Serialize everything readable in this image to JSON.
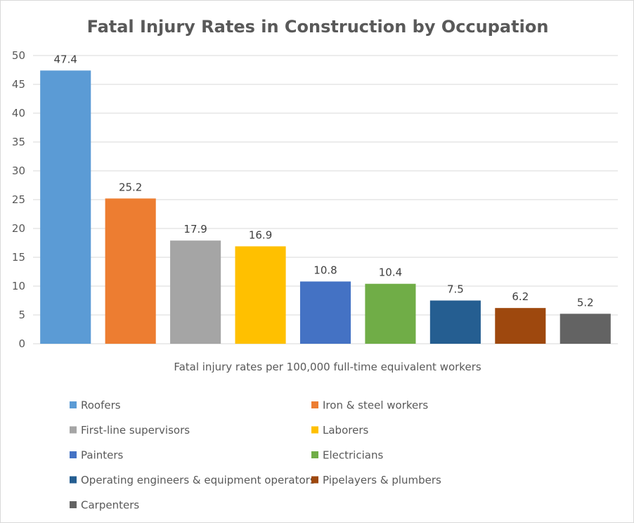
{
  "chart_data": {
    "type": "bar",
    "title": "Fatal Injury Rates in Construction by Occupation",
    "xlabel": "Fatal injury rates per 100,000 full-time equivalent workers",
    "ylabel": "",
    "ylim": [
      0,
      50
    ],
    "yticks": [
      0,
      5,
      10,
      15,
      20,
      25,
      30,
      35,
      40,
      45,
      50
    ],
    "grid": true,
    "legend_position": "bottom",
    "series": [
      {
        "name": "Roofers",
        "value": 47.4,
        "color": "#5b9bd5"
      },
      {
        "name": "Iron & steel workers",
        "value": 25.2,
        "color": "#ed7d31"
      },
      {
        "name": "First-line supervisors",
        "value": 17.9,
        "color": "#a5a5a5"
      },
      {
        "name": "Laborers",
        "value": 16.9,
        "color": "#ffc000"
      },
      {
        "name": "Painters",
        "value": 10.8,
        "color": "#4472c4"
      },
      {
        "name": "Electricians",
        "value": 10.4,
        "color": "#70ad47"
      },
      {
        "name": "Operating engineers & equipment operators",
        "value": 7.5,
        "color": "#255e91"
      },
      {
        "name": "Pipelayers & plumbers",
        "value": 6.2,
        "color": "#9e480e"
      },
      {
        "name": "Carpenters",
        "value": 5.2,
        "color": "#636363"
      }
    ]
  }
}
